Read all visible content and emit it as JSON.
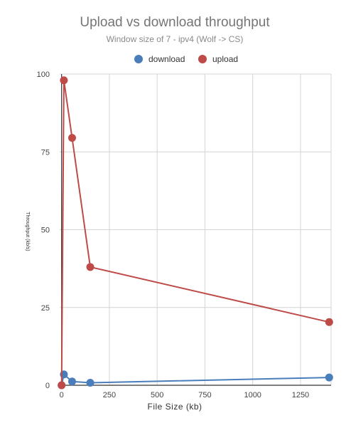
{
  "chart_data": {
    "type": "line",
    "title": "Upload vs download throughput",
    "subtitle": "Window size of 7 - ipv4 (Wolf -> CS)",
    "xlabel": "File Size (kb)",
    "ylabel": "Throughput (kb/s)",
    "xlim": [
      -10,
      1410
    ],
    "ylim": [
      0,
      100
    ],
    "x_ticks": [
      0,
      250,
      500,
      750,
      1000,
      1250
    ],
    "y_ticks": [
      0,
      25,
      50,
      75,
      100
    ],
    "grid": true,
    "legend_position": "top",
    "series": [
      {
        "name": "download",
        "color": "#4a7ebb",
        "points": [
          [
            0,
            0
          ],
          [
            12,
            3.5
          ],
          [
            55,
            1.2
          ],
          [
            150,
            0.8
          ],
          [
            1400,
            2.5
          ]
        ]
      },
      {
        "name": "upload",
        "color": "#be4b48",
        "points": [
          [
            0,
            0
          ],
          [
            12,
            98
          ],
          [
            55,
            79.5
          ],
          [
            150,
            38
          ],
          [
            1400,
            20.3
          ]
        ]
      }
    ]
  }
}
